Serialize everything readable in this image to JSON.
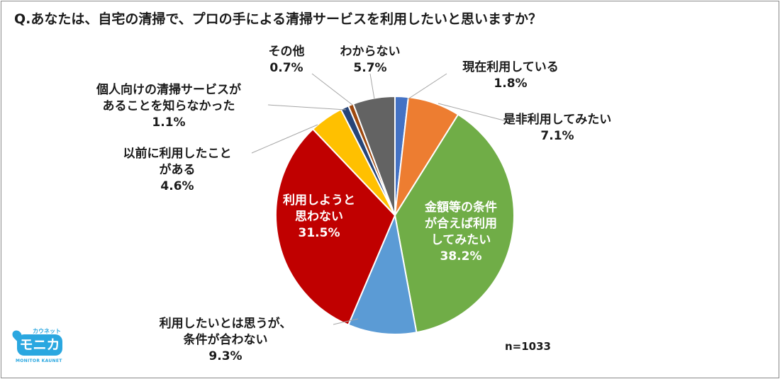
{
  "title": "Q.あなたは、自宅の清掃で、プロの手による清掃サービスを利用したいと思いますか？",
  "n_label": "n=1033",
  "logo": {
    "top": "カウネット",
    "main": "モニカ",
    "bottom": "MONITOR KAUNET"
  },
  "chart_data": {
    "type": "pie",
    "title": "Q.あなたは、自宅の清掃で、プロの手による清掃サービスを利用したいと思いますか？",
    "slices": [
      {
        "label": [
          "現在利用している"
        ],
        "value": 1.8,
        "display": "1.8%",
        "color": "#4472C4"
      },
      {
        "label": [
          "是非利用してみたい"
        ],
        "value": 7.1,
        "display": "7.1%",
        "color": "#ED7D31"
      },
      {
        "label": [
          "金額等の条件",
          "が合えば利用",
          "してみたい"
        ],
        "value": 38.2,
        "display": "38.2%",
        "color": "#70AD47"
      },
      {
        "label": [
          "利用したいとは思うが、",
          "条件が合わない"
        ],
        "value": 9.3,
        "display": "9.3%",
        "color": "#5B9BD5"
      },
      {
        "label": [
          "利用しようと",
          "思わない"
        ],
        "value": 31.5,
        "display": "31.5%",
        "color": "#C00000"
      },
      {
        "label": [
          "以前に利用したこと",
          "がある"
        ],
        "value": 4.6,
        "display": "4.6%",
        "color": "#FFC000"
      },
      {
        "label": [
          "個人向けの清掃サービスが",
          "あることを知らなかった"
        ],
        "value": 1.1,
        "display": "1.1%",
        "color": "#264478"
      },
      {
        "label": [
          "その他"
        ],
        "value": 0.7,
        "display": "0.7%",
        "color": "#9E480E"
      },
      {
        "label": [
          "わからない"
        ],
        "value": 5.7,
        "display": "5.7%",
        "color": "#636363"
      }
    ]
  }
}
